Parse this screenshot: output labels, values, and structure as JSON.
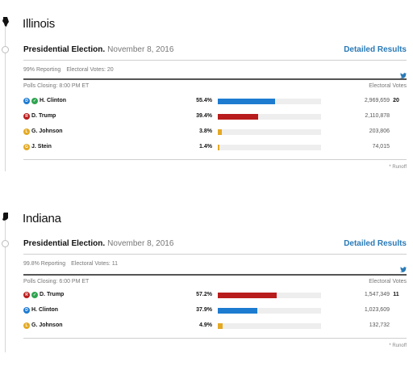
{
  "colors": {
    "democrat": "#1d7bd0",
    "republican": "#b91c1c",
    "libertarian": "#e3a924",
    "green": "#e3a924",
    "winner_check": "#2ea44f",
    "link": "#2a7ab7"
  },
  "icons": {
    "twitter": "twitter-icon",
    "winner": "check-icon",
    "state_shape": "state-outline-icon"
  },
  "states": [
    {
      "name": "Illinois",
      "race_title": "Presidential Election.",
      "race_date": "November 8, 2016",
      "detail_link": "Detailed Results",
      "reporting": "99% Reporting",
      "electoral_votes": "Electoral Votes: 20",
      "polls_closing": "Polls Closing: 8:00 PM ET",
      "ev_header": "Electoral Votes",
      "runoff": "* Runoff",
      "candidates": [
        {
          "party": "D",
          "name": "H. Clinton",
          "pct": "55.4%",
          "share": 55.4,
          "votes": "2,969,659",
          "ev": "20",
          "winner": true
        },
        {
          "party": "R",
          "name": "D. Trump",
          "pct": "39.4%",
          "share": 39.4,
          "votes": "2,110,878",
          "ev": "",
          "winner": false
        },
        {
          "party": "L",
          "name": "G. Johnson",
          "pct": "3.8%",
          "share": 3.8,
          "votes": "203,806",
          "ev": "",
          "winner": false
        },
        {
          "party": "G",
          "name": "J. Stein",
          "pct": "1.4%",
          "share": 1.4,
          "votes": "74,015",
          "ev": "",
          "winner": false
        }
      ]
    },
    {
      "name": "Indiana",
      "race_title": "Presidential Election.",
      "race_date": "November 8, 2016",
      "detail_link": "Detailed Results",
      "reporting": "99.8% Reporting",
      "electoral_votes": "Electoral Votes: 11",
      "polls_closing": "Polls Closing: 6:00 PM ET",
      "ev_header": "Electoral Votes",
      "runoff": "* Runoff",
      "candidates": [
        {
          "party": "R",
          "name": "D. Trump",
          "pct": "57.2%",
          "share": 57.2,
          "votes": "1,547,349",
          "ev": "11",
          "winner": true
        },
        {
          "party": "D",
          "name": "H. Clinton",
          "pct": "37.9%",
          "share": 37.9,
          "votes": "1,023,609",
          "ev": "",
          "winner": false
        },
        {
          "party": "L",
          "name": "G. Johnson",
          "pct": "4.9%",
          "share": 4.9,
          "votes": "132,732",
          "ev": "",
          "winner": false
        }
      ]
    }
  ]
}
